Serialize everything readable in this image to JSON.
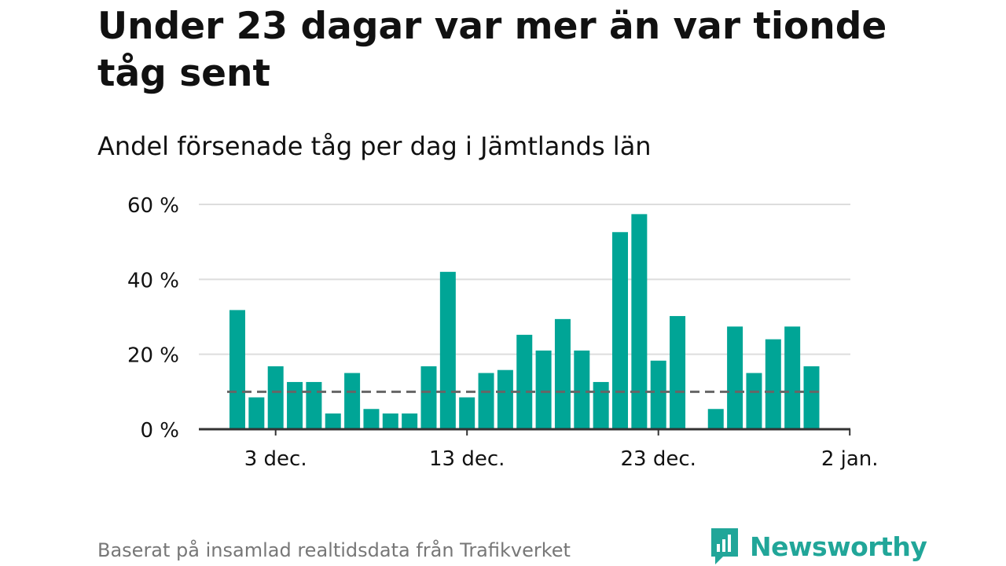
{
  "title": "Under 23 dagar var mer än var tionde tåg sent",
  "subtitle": "Andel försenade tåg per dag i Jämtlands län",
  "footer": "Baserat på insamlad realtidsdata från Trafikverket",
  "brand": {
    "name": "Newsworthy",
    "icon": "newsworthy-logo-icon",
    "color": "#21a699"
  },
  "colors": {
    "bar": "#00a596",
    "grid": "#dddddd",
    "axis": "#333333",
    "reference": "#666666"
  },
  "chart_data": {
    "type": "bar",
    "x_unit": "day",
    "categories": [
      "1 dec.",
      "2 dec.",
      "3 dec.",
      "4 dec.",
      "5 dec.",
      "6 dec.",
      "7 dec.",
      "8 dec.",
      "9 dec.",
      "10 dec.",
      "11 dec.",
      "12 dec.",
      "13 dec.",
      "14 dec.",
      "15 dec.",
      "16 dec.",
      "17 dec.",
      "18 dec.",
      "19 dec.",
      "20 dec.",
      "21 dec.",
      "22 dec.",
      "23 dec.",
      "24 dec.",
      "25 dec.",
      "26 dec.",
      "27 dec.",
      "28 dec.",
      "29 dec.",
      "30 dec.",
      "31 dec."
    ],
    "values": [
      31.8,
      8.5,
      16.8,
      12.6,
      12.6,
      4.2,
      15.0,
      5.4,
      4.2,
      4.2,
      16.8,
      42.0,
      8.5,
      15.0,
      15.8,
      25.2,
      21.0,
      29.4,
      21.0,
      12.6,
      52.6,
      57.4,
      18.3,
      30.2,
      0,
      5.4,
      27.4,
      15.0,
      24.0,
      27.4,
      16.8
    ],
    "reference_line": 10,
    "ylim": [
      0,
      60
    ],
    "yticks": [
      0,
      20,
      40,
      60
    ],
    "ytick_labels": [
      "0 %",
      "20 %",
      "40 %",
      "60 %"
    ],
    "xticks": [
      {
        "day_index": 2,
        "label": "3 dec."
      },
      {
        "day_index": 12,
        "label": "13 dec."
      },
      {
        "day_index": 22,
        "label": "23 dec."
      },
      {
        "day_index": 32,
        "label": "2 jan."
      }
    ],
    "grid": true,
    "legend": "none"
  }
}
